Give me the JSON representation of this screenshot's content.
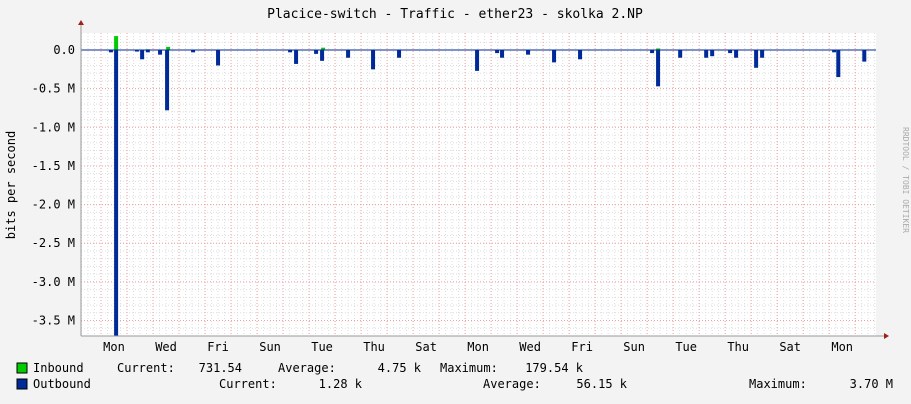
{
  "chart_data": {
    "type": "area",
    "title": "Placice-switch - Traffic - ether23 - skolka 2.NP",
    "ylabel": "bits per second",
    "watermark": "RRDTOOL / TOBI OETIKER",
    "ylim": [
      -3.7,
      0.22
    ],
    "y_unit": "M",
    "yticks": [
      {
        "v": 0,
        "label": "0.0"
      },
      {
        "v": -0.5,
        "label": "-0.5 M"
      },
      {
        "v": -1.0,
        "label": "-1.0 M"
      },
      {
        "v": -1.5,
        "label": "-1.5 M"
      },
      {
        "v": -2.0,
        "label": "-2.0 M"
      },
      {
        "v": -2.5,
        "label": "-2.5 M"
      },
      {
        "v": -3.0,
        "label": "-3.0 M"
      },
      {
        "v": -3.5,
        "label": "-3.5 M"
      }
    ],
    "xlim_days": [
      -0.77,
      29.8
    ],
    "xticks": [
      "Mon",
      "Wed",
      "Fri",
      "Sun",
      "Tue",
      "Thu",
      "Sat",
      "Mon",
      "Wed",
      "Fri",
      "Sun",
      "Tue",
      "Thu",
      "Sat",
      "Mon"
    ],
    "grid": true,
    "series": [
      {
        "name": "Inbound",
        "color": "#00cc00",
        "points": [
          [
            0.58,
            0.18
          ],
          [
            1.8,
            0.01
          ],
          [
            2.58,
            0.04
          ],
          [
            8.54,
            0.03
          ],
          [
            21.42,
            0.02
          ]
        ]
      },
      {
        "name": "Outbound",
        "color": "#002a97",
        "points": [
          [
            0.38,
            -0.03
          ],
          [
            0.58,
            -3.7
          ],
          [
            1.38,
            -0.02
          ],
          [
            1.58,
            -0.12
          ],
          [
            1.8,
            -0.03
          ],
          [
            2.27,
            -0.06
          ],
          [
            2.54,
            -0.78
          ],
          [
            3.54,
            -0.03
          ],
          [
            4.5,
            -0.2
          ],
          [
            7.27,
            -0.03
          ],
          [
            7.5,
            -0.18
          ],
          [
            8.27,
            -0.05
          ],
          [
            8.5,
            -0.14
          ],
          [
            9.5,
            -0.1
          ],
          [
            10.46,
            -0.25
          ],
          [
            11.46,
            -0.1
          ],
          [
            14.46,
            -0.27
          ],
          [
            15.23,
            -0.04
          ],
          [
            15.42,
            -0.1
          ],
          [
            16.42,
            -0.06
          ],
          [
            17.42,
            -0.16
          ],
          [
            18.42,
            -0.12
          ],
          [
            21.19,
            -0.04
          ],
          [
            21.42,
            -0.47
          ],
          [
            22.27,
            -0.1
          ],
          [
            23.27,
            -0.1
          ],
          [
            23.5,
            -0.08
          ],
          [
            24.19,
            -0.04
          ],
          [
            24.42,
            -0.1
          ],
          [
            25.19,
            -0.23
          ],
          [
            25.42,
            -0.1
          ],
          [
            28.19,
            -0.03
          ],
          [
            28.35,
            -0.35
          ],
          [
            29.35,
            -0.15
          ]
        ]
      }
    ]
  },
  "legend": [
    {
      "name": "Inbound",
      "current_label": "Current:",
      "current": "731.54",
      "average_label": "Average:",
      "average": "4.75 k",
      "maximum_label": "Maximum:",
      "maximum": "179.54 k"
    },
    {
      "name": "Outbound",
      "current_label": "Current:",
      "current": "1.28 k",
      "average_label": "Average:",
      "average": "56.15 k",
      "maximum_label": "Maximum:",
      "maximum": "3.70 M"
    }
  ]
}
